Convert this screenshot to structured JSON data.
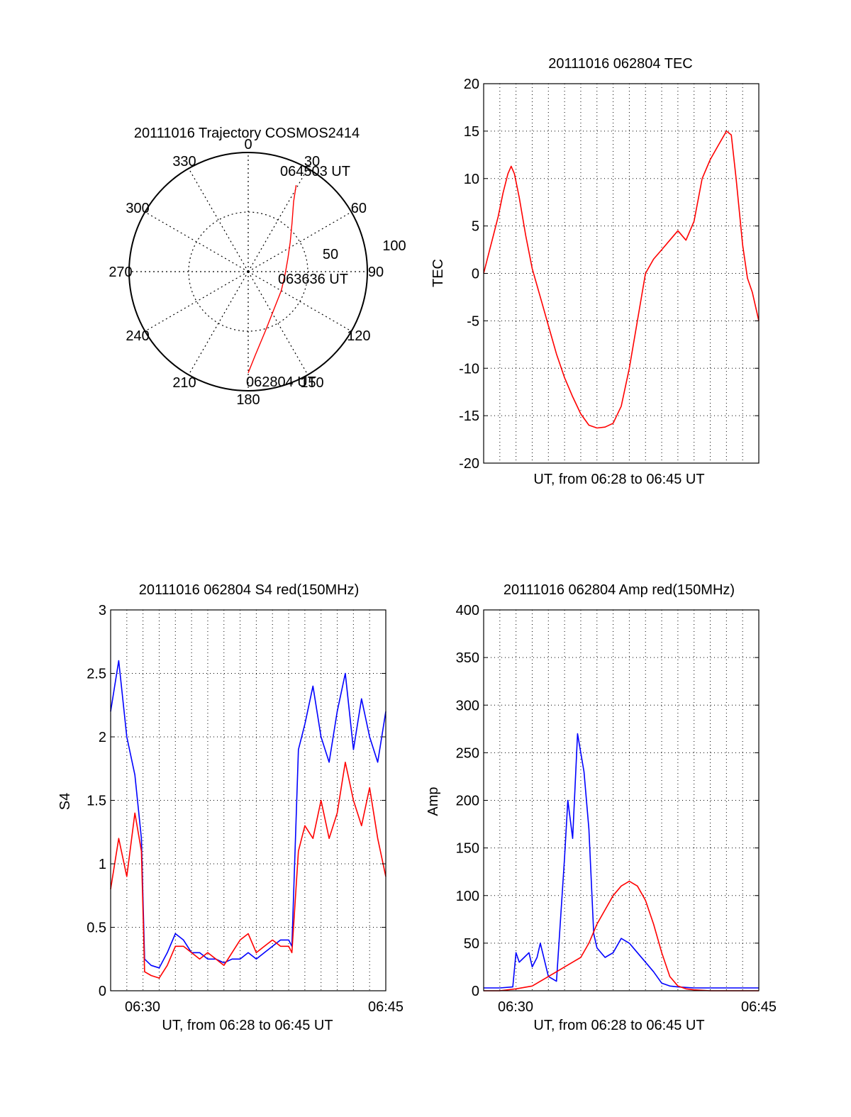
{
  "colors": {
    "red": "#ff0000",
    "blue": "#0000ff",
    "axis": "#000000",
    "grid": "#000000",
    "background": "#ffffff"
  },
  "chart_data": [
    {
      "id": "polar",
      "type": "scatter",
      "title": "20111016 Trajectory COSMOS2414",
      "coordinate_system": "polar (azimuth in degrees clockwise from north, radius = 90 - elevation)",
      "angle_labels": [
        "0",
        "30",
        "60",
        "90",
        "120",
        "150",
        "180",
        "210",
        "240",
        "270",
        "300",
        "330"
      ],
      "radius_labels": [
        "50",
        "100"
      ],
      "rlim": [
        0,
        100
      ],
      "grid": "dotted",
      "annotations": [
        "064503 UT",
        "063636 UT",
        "062804 UT"
      ],
      "series": [
        {
          "color": "#ff0000",
          "points": [
            {
              "az": 180,
              "r": 85
            },
            {
              "az": 175,
              "r": 70
            },
            {
              "az": 164,
              "r": 52
            },
            {
              "az": 145,
              "r": 38
            },
            {
              "az": 120,
              "r": 32
            },
            {
              "az": 95,
              "r": 31
            },
            {
              "az": 72,
              "r": 35
            },
            {
              "az": 55,
              "r": 43
            },
            {
              "az": 42,
              "r": 55
            },
            {
              "az": 33,
              "r": 70
            },
            {
              "az": 29,
              "r": 83
            }
          ]
        }
      ]
    },
    {
      "id": "tec",
      "type": "line",
      "title": "20111016 062804 TEC",
      "xlabel": "UT, from 06:28 to 06:45 UT",
      "ylabel": "TEC",
      "xlim": [
        0,
        17
      ],
      "ylim": [
        -20,
        20
      ],
      "yticks": [
        "-20",
        "-15",
        "-10",
        "-5",
        "0",
        "5",
        "10",
        "15",
        "20"
      ],
      "grid": "dotted",
      "series": [
        {
          "color": "#ff0000",
          "x": [
            0,
            0.3,
            0.6,
            0.9,
            1.2,
            1.5,
            1.7,
            1.9,
            2.2,
            2.6,
            3.0,
            3.5,
            4.0,
            4.5,
            5.0,
            5.5,
            6.0,
            6.5,
            7.0,
            7.5,
            8.0,
            8.5,
            9.0,
            9.5,
            10.0,
            10.5,
            11.0,
            11.5,
            12.0,
            12.5,
            13.0,
            13.5,
            14.0,
            14.5,
            15.0,
            15.3,
            15.6,
            16.0,
            16.3,
            16.6,
            17.0
          ],
          "y": [
            0,
            2,
            4,
            6,
            8.5,
            10.5,
            11.3,
            10.5,
            8,
            4,
            0.5,
            -2.5,
            -5.5,
            -8.5,
            -11,
            -13,
            -14.8,
            -16,
            -16.3,
            -16.2,
            -15.8,
            -14,
            -10,
            -5,
            0,
            1.5,
            2.5,
            3.5,
            4.5,
            3.5,
            5.5,
            10,
            12,
            13.5,
            15,
            14.6,
            10,
            3,
            -0.5,
            -2,
            -5
          ]
        }
      ]
    },
    {
      "id": "s4",
      "type": "line",
      "title": "20111016 062804 S4 red(150MHz)",
      "xlabel": "UT, from 06:28 to 06:45 UT",
      "ylabel": "S4",
      "xlim": [
        0,
        17
      ],
      "ylim": [
        0,
        3
      ],
      "xticks": [
        "06:30",
        "06:45"
      ],
      "yticks": [
        "0",
        "0.5",
        "1",
        "1.5",
        "2",
        "2.5",
        "3"
      ],
      "grid": "dotted",
      "series": [
        {
          "color": "#0000ff",
          "x": [
            0,
            0.5,
            1.0,
            1.5,
            1.9,
            2.1,
            2.5,
            3.0,
            3.5,
            4.0,
            4.5,
            5.0,
            5.5,
            6.0,
            6.5,
            7.0,
            7.5,
            8.0,
            8.5,
            9.0,
            9.5,
            10.0,
            10.5,
            11.0,
            11.2,
            11.6,
            12.0,
            12.5,
            13.0,
            13.5,
            14.0,
            14.5,
            15.0,
            15.5,
            16.0,
            16.5,
            17.0
          ],
          "y": [
            2.2,
            2.6,
            2.0,
            1.7,
            1.2,
            0.25,
            0.2,
            0.18,
            0.3,
            0.45,
            0.4,
            0.3,
            0.3,
            0.25,
            0.25,
            0.22,
            0.25,
            0.25,
            0.3,
            0.25,
            0.3,
            0.35,
            0.4,
            0.4,
            0.35,
            1.9,
            2.1,
            2.4,
            2.0,
            1.8,
            2.2,
            2.5,
            1.9,
            2.3,
            2.0,
            1.8,
            2.2
          ]
        },
        {
          "color": "#ff0000",
          "x": [
            0,
            0.5,
            1.0,
            1.5,
            1.9,
            2.1,
            2.5,
            3.0,
            3.5,
            4.0,
            4.5,
            5.0,
            5.5,
            6.0,
            6.5,
            7.0,
            7.5,
            8.0,
            8.5,
            9.0,
            9.5,
            10.0,
            10.5,
            11.0,
            11.2,
            11.6,
            12.0,
            12.5,
            13.0,
            13.5,
            14.0,
            14.5,
            15.0,
            15.5,
            16.0,
            16.5,
            17.0
          ],
          "y": [
            0.8,
            1.2,
            0.9,
            1.4,
            1.1,
            0.15,
            0.12,
            0.1,
            0.2,
            0.35,
            0.35,
            0.3,
            0.25,
            0.3,
            0.25,
            0.2,
            0.3,
            0.4,
            0.45,
            0.3,
            0.35,
            0.4,
            0.35,
            0.35,
            0.3,
            1.1,
            1.3,
            1.2,
            1.5,
            1.2,
            1.4,
            1.8,
            1.5,
            1.3,
            1.6,
            1.2,
            0.9
          ]
        }
      ]
    },
    {
      "id": "amp",
      "type": "line",
      "title": "20111016 062804 Amp red(150MHz)",
      "xlabel": "UT, from 06:28 to 06:45 UT",
      "ylabel": "Amp",
      "xlim": [
        0,
        17
      ],
      "ylim": [
        0,
        400
      ],
      "xticks": [
        "06:30",
        "06:45"
      ],
      "yticks": [
        "0",
        "50",
        "100",
        "150",
        "200",
        "250",
        "300",
        "350",
        "400"
      ],
      "grid": "dotted",
      "series": [
        {
          "color": "#0000ff",
          "x": [
            0,
            1.0,
            1.8,
            2.0,
            2.2,
            2.5,
            2.8,
            3.0,
            3.3,
            3.5,
            4.0,
            4.5,
            5.0,
            5.2,
            5.5,
            5.8,
            6.2,
            6.5,
            6.8,
            7.0,
            7.5,
            8.0,
            8.5,
            9.0,
            9.5,
            10.0,
            10.5,
            11.0,
            11.5,
            12.0,
            13.0,
            14.0,
            15.0,
            16.0,
            17.0
          ],
          "y": [
            3,
            3,
            4,
            40,
            30,
            35,
            40,
            25,
            35,
            50,
            15,
            10,
            140,
            200,
            160,
            270,
            230,
            170,
            60,
            45,
            35,
            40,
            55,
            50,
            40,
            30,
            20,
            8,
            5,
            4,
            3,
            3,
            3,
            3,
            3
          ]
        },
        {
          "color": "#ff0000",
          "x": [
            0,
            1.0,
            2.0,
            3.0,
            4.0,
            4.5,
            5.0,
            5.5,
            6.0,
            6.5,
            7.0,
            7.5,
            8.0,
            8.5,
            9.0,
            9.5,
            10.0,
            10.5,
            11.0,
            11.5,
            12.0,
            12.5,
            13.0,
            14.0,
            15.0,
            16.0,
            17.0
          ],
          "y": [
            0,
            0,
            2,
            5,
            15,
            20,
            25,
            30,
            35,
            50,
            70,
            85,
            100,
            110,
            115,
            110,
            95,
            70,
            40,
            15,
            5,
            2,
            1,
            0,
            0,
            0,
            0
          ]
        }
      ]
    }
  ]
}
